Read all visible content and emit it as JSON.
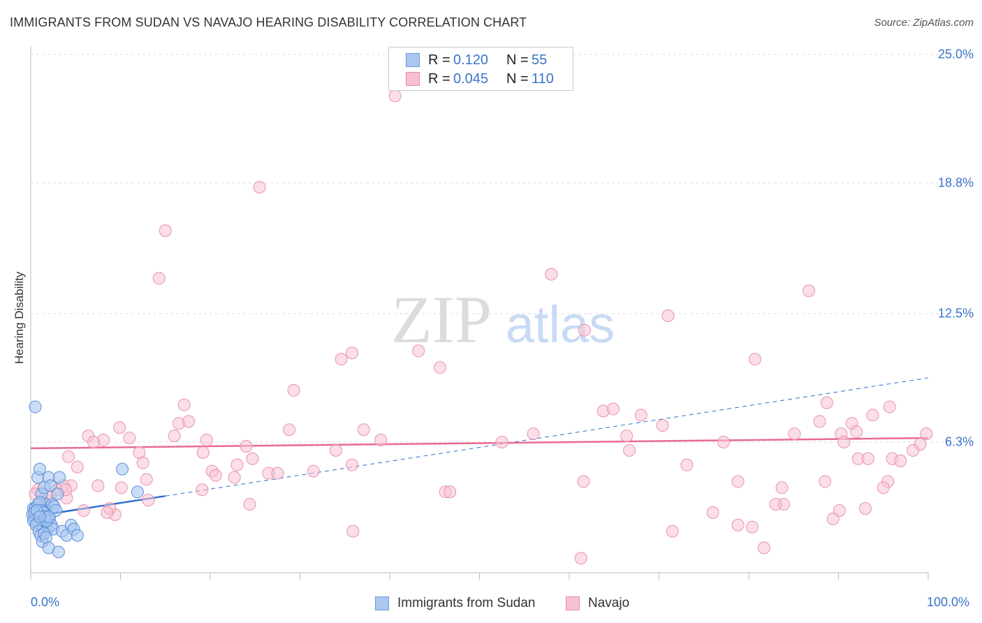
{
  "title": "IMMIGRANTS FROM SUDAN VS NAVAJO HEARING DISABILITY CORRELATION CHART",
  "source": "Source: ZipAtlas.com",
  "watermark": {
    "zip": "ZIP",
    "atlas": "atlas"
  },
  "legend_stats": [
    {
      "r_label": "R =",
      "r_value": "0.120",
      "n_label": "N =",
      "n_value": "55",
      "color": "#a9c7f0",
      "border": "#6a9ad8"
    },
    {
      "r_label": "R =",
      "r_value": "0.045",
      "n_label": "N =",
      "n_value": "110",
      "color": "#f7bfd0",
      "border": "#e58aa8"
    }
  ],
  "colors": {
    "blue_fill": "#a9c7f0",
    "blue_stroke": "#5b8fd6",
    "blue_line": "#2e6fd0",
    "pink_fill": "#f7c3d3",
    "pink_stroke": "#e892ae",
    "pink_line": "#e86a92",
    "tick_text": "#3a74c9"
  },
  "chart_data": {
    "type": "scatter",
    "title": "IMMIGRANTS FROM SUDAN VS NAVAJO HEARING DISABILITY CORRELATION CHART",
    "xlabel": "",
    "ylabel": "Hearing Disability",
    "xlim": [
      0,
      100
    ],
    "ylim": [
      0,
      25.0
    ],
    "x_tick_labels": [
      "0.0%",
      "100.0%"
    ],
    "y_ticks": [
      6.3,
      12.5,
      18.8,
      25.0
    ],
    "y_tick_labels": [
      "6.3%",
      "12.5%",
      "18.8%",
      "25.0%"
    ],
    "grid": true,
    "legend_placement": "bottom",
    "series": [
      {
        "name": "Immigrants from Sudan",
        "r": 0.12,
        "n": 55,
        "trend": {
          "x": [
            0,
            15
          ],
          "y": [
            2.7,
            3.7
          ],
          "dashed_extension_to_x": 100,
          "dashed_extension_y": 9.4
        },
        "points": [
          [
            0.5,
            8.0
          ],
          [
            0.8,
            4.6
          ],
          [
            1.0,
            5.0
          ],
          [
            1.2,
            3.8
          ],
          [
            1.5,
            4.1
          ],
          [
            1.6,
            3.3
          ],
          [
            1.8,
            3.0
          ],
          [
            2.0,
            4.6
          ],
          [
            2.2,
            4.2
          ],
          [
            2.4,
            3.3
          ],
          [
            2.6,
            3.2
          ],
          [
            2.8,
            3.0
          ],
          [
            3.0,
            3.8
          ],
          [
            3.2,
            4.6
          ],
          [
            0.3,
            3.1
          ],
          [
            0.4,
            2.6
          ],
          [
            0.6,
            2.9
          ],
          [
            0.7,
            2.4
          ],
          [
            0.9,
            2.8
          ],
          [
            1.1,
            2.6
          ],
          [
            1.3,
            2.5
          ],
          [
            1.4,
            2.2
          ],
          [
            1.7,
            2.4
          ],
          [
            1.9,
            2.1
          ],
          [
            2.1,
            2.6
          ],
          [
            2.3,
            2.3
          ],
          [
            2.5,
            2.1
          ],
          [
            0.2,
            2.8
          ],
          [
            0.5,
            3.1
          ],
          [
            0.8,
            3.3
          ],
          [
            1.0,
            3.4
          ],
          [
            1.2,
            3.0
          ],
          [
            1.4,
            2.9
          ],
          [
            1.6,
            2.7
          ],
          [
            1.8,
            2.5
          ],
          [
            2.0,
            2.7
          ],
          [
            0.3,
            2.5
          ],
          [
            0.6,
            2.3
          ],
          [
            0.9,
            2.0
          ],
          [
            1.1,
            1.8
          ],
          [
            1.3,
            1.5
          ],
          [
            1.5,
            1.9
          ],
          [
            1.7,
            1.7
          ],
          [
            2.0,
            1.2
          ],
          [
            3.1,
            1.0
          ],
          [
            3.5,
            2.0
          ],
          [
            4.0,
            1.8
          ],
          [
            4.5,
            2.3
          ],
          [
            4.8,
            2.1
          ],
          [
            5.2,
            1.8
          ],
          [
            0.4,
            2.9
          ],
          [
            0.7,
            3.0
          ],
          [
            1.0,
            2.7
          ],
          [
            10.2,
            5.0
          ],
          [
            11.9,
            3.9
          ]
        ]
      },
      {
        "name": "Navajo",
        "r": 0.045,
        "n": 110,
        "trend": {
          "x": [
            0,
            100
          ],
          "y": [
            6.0,
            6.5
          ]
        },
        "points": [
          [
            40.6,
            23.0
          ],
          [
            25.5,
            18.6
          ],
          [
            15.0,
            16.5
          ],
          [
            14.3,
            14.2
          ],
          [
            58.0,
            14.4
          ],
          [
            86.7,
            13.6
          ],
          [
            71.0,
            12.4
          ],
          [
            61.7,
            11.7
          ],
          [
            43.2,
            10.7
          ],
          [
            34.6,
            10.3
          ],
          [
            35.8,
            10.6
          ],
          [
            45.6,
            9.9
          ],
          [
            80.7,
            10.3
          ],
          [
            29.3,
            8.8
          ],
          [
            17.1,
            8.1
          ],
          [
            88.7,
            8.2
          ],
          [
            63.8,
            7.8
          ],
          [
            64.9,
            7.9
          ],
          [
            68.0,
            7.6
          ],
          [
            70.4,
            7.1
          ],
          [
            87.9,
            7.3
          ],
          [
            91.5,
            7.2
          ],
          [
            93.8,
            7.6
          ],
          [
            95.7,
            8.0
          ],
          [
            16.5,
            7.2
          ],
          [
            17.6,
            7.3
          ],
          [
            9.9,
            7.0
          ],
          [
            28.8,
            6.9
          ],
          [
            37.1,
            6.9
          ],
          [
            56.0,
            6.7
          ],
          [
            66.4,
            6.6
          ],
          [
            85.1,
            6.7
          ],
          [
            90.3,
            6.7
          ],
          [
            92.0,
            6.8
          ],
          [
            99.8,
            6.7
          ],
          [
            6.4,
            6.6
          ],
          [
            8.1,
            6.4
          ],
          [
            7.0,
            6.3
          ],
          [
            11.0,
            6.5
          ],
          [
            16.0,
            6.6
          ],
          [
            19.6,
            6.4
          ],
          [
            39.0,
            6.4
          ],
          [
            52.5,
            6.3
          ],
          [
            77.2,
            6.3
          ],
          [
            90.6,
            6.3
          ],
          [
            99.1,
            6.2
          ],
          [
            24.0,
            6.1
          ],
          [
            34.0,
            5.9
          ],
          [
            66.7,
            5.9
          ],
          [
            98.3,
            5.9
          ],
          [
            12.1,
            5.8
          ],
          [
            19.2,
            5.8
          ],
          [
            4.2,
            5.6
          ],
          [
            24.7,
            5.5
          ],
          [
            92.2,
            5.5
          ],
          [
            96.0,
            5.5
          ],
          [
            93.3,
            5.5
          ],
          [
            96.9,
            5.4
          ],
          [
            12.5,
            5.3
          ],
          [
            23.0,
            5.2
          ],
          [
            35.8,
            5.2
          ],
          [
            73.1,
            5.2
          ],
          [
            5.2,
            5.1
          ],
          [
            20.2,
            4.9
          ],
          [
            26.5,
            4.8
          ],
          [
            27.5,
            4.8
          ],
          [
            31.5,
            4.9
          ],
          [
            20.6,
            4.7
          ],
          [
            22.7,
            4.6
          ],
          [
            12.9,
            4.5
          ],
          [
            61.6,
            4.4
          ],
          [
            78.8,
            4.4
          ],
          [
            88.5,
            4.4
          ],
          [
            95.5,
            4.4
          ],
          [
            4.5,
            4.2
          ],
          [
            7.5,
            4.2
          ],
          [
            10.1,
            4.1
          ],
          [
            19.1,
            4.0
          ],
          [
            83.7,
            4.1
          ],
          [
            95.0,
            4.1
          ],
          [
            3.6,
            4.2
          ],
          [
            2.9,
            4.0
          ],
          [
            0.8,
            4.0
          ],
          [
            46.2,
            3.9
          ],
          [
            46.7,
            3.9
          ],
          [
            4.0,
            3.6
          ],
          [
            13.1,
            3.5
          ],
          [
            1.8,
            3.5
          ],
          [
            24.4,
            3.3
          ],
          [
            83.9,
            3.3
          ],
          [
            83.0,
            3.3
          ],
          [
            93.0,
            3.1
          ],
          [
            90.1,
            3.0
          ],
          [
            9.4,
            2.8
          ],
          [
            8.8,
            3.1
          ],
          [
            76.0,
            2.9
          ],
          [
            89.4,
            2.6
          ],
          [
            78.8,
            2.3
          ],
          [
            35.9,
            2.0
          ],
          [
            80.4,
            2.2
          ],
          [
            71.5,
            2.0
          ],
          [
            81.7,
            1.2
          ],
          [
            61.3,
            0.7
          ],
          [
            3.9,
            4.0
          ],
          [
            2.2,
            3.7
          ],
          [
            0.5,
            3.8
          ],
          [
            1.4,
            3.4
          ],
          [
            5.9,
            3.0
          ],
          [
            8.5,
            2.9
          ],
          [
            1.0,
            3.1
          ]
        ]
      }
    ]
  },
  "bottom_legend": [
    "Immigrants from Sudan",
    "Navajo"
  ]
}
